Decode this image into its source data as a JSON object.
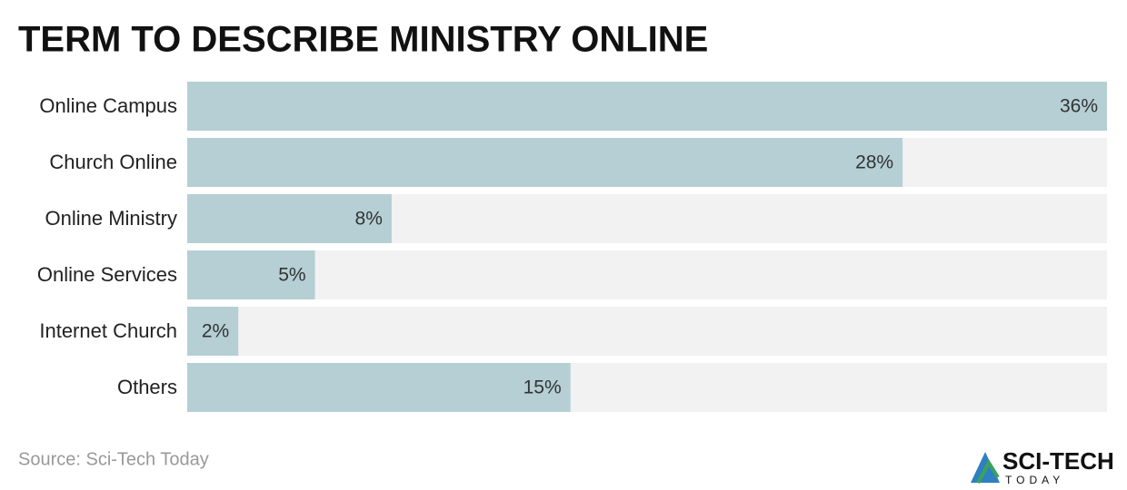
{
  "chart_data": {
    "type": "bar",
    "orientation": "horizontal",
    "title": "TERM TO DESCRIBE MINISTRY ONLINE",
    "categories": [
      "Online Campus",
      "Church Online",
      "Online Ministry",
      "Online Services",
      "Internet Church",
      "Others"
    ],
    "values": [
      36,
      28,
      8,
      5,
      2,
      15
    ],
    "value_labels": [
      "36%",
      "28%",
      "8%",
      "5%",
      "2%",
      "15%"
    ],
    "color": "#b5cfd4",
    "track_color": "#f2f2f2",
    "xlim": [
      0,
      36
    ],
    "source": "Source: Sci-Tech Today",
    "logo_text": "SCI-TECH",
    "logo_subtext": "TODAY"
  }
}
